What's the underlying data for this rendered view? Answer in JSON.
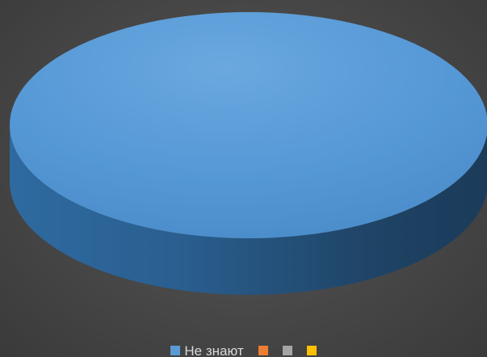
{
  "chart_data": {
    "type": "pie",
    "three_d": true,
    "categories": [
      "Не знают",
      "",
      "",
      ""
    ],
    "values": [
      100,
      0,
      0,
      0
    ],
    "colors": [
      "#5b9bd5",
      "#ed7d31",
      "#a5a5a5",
      "#ffc000"
    ],
    "legend_position": "bottom",
    "title": ""
  }
}
